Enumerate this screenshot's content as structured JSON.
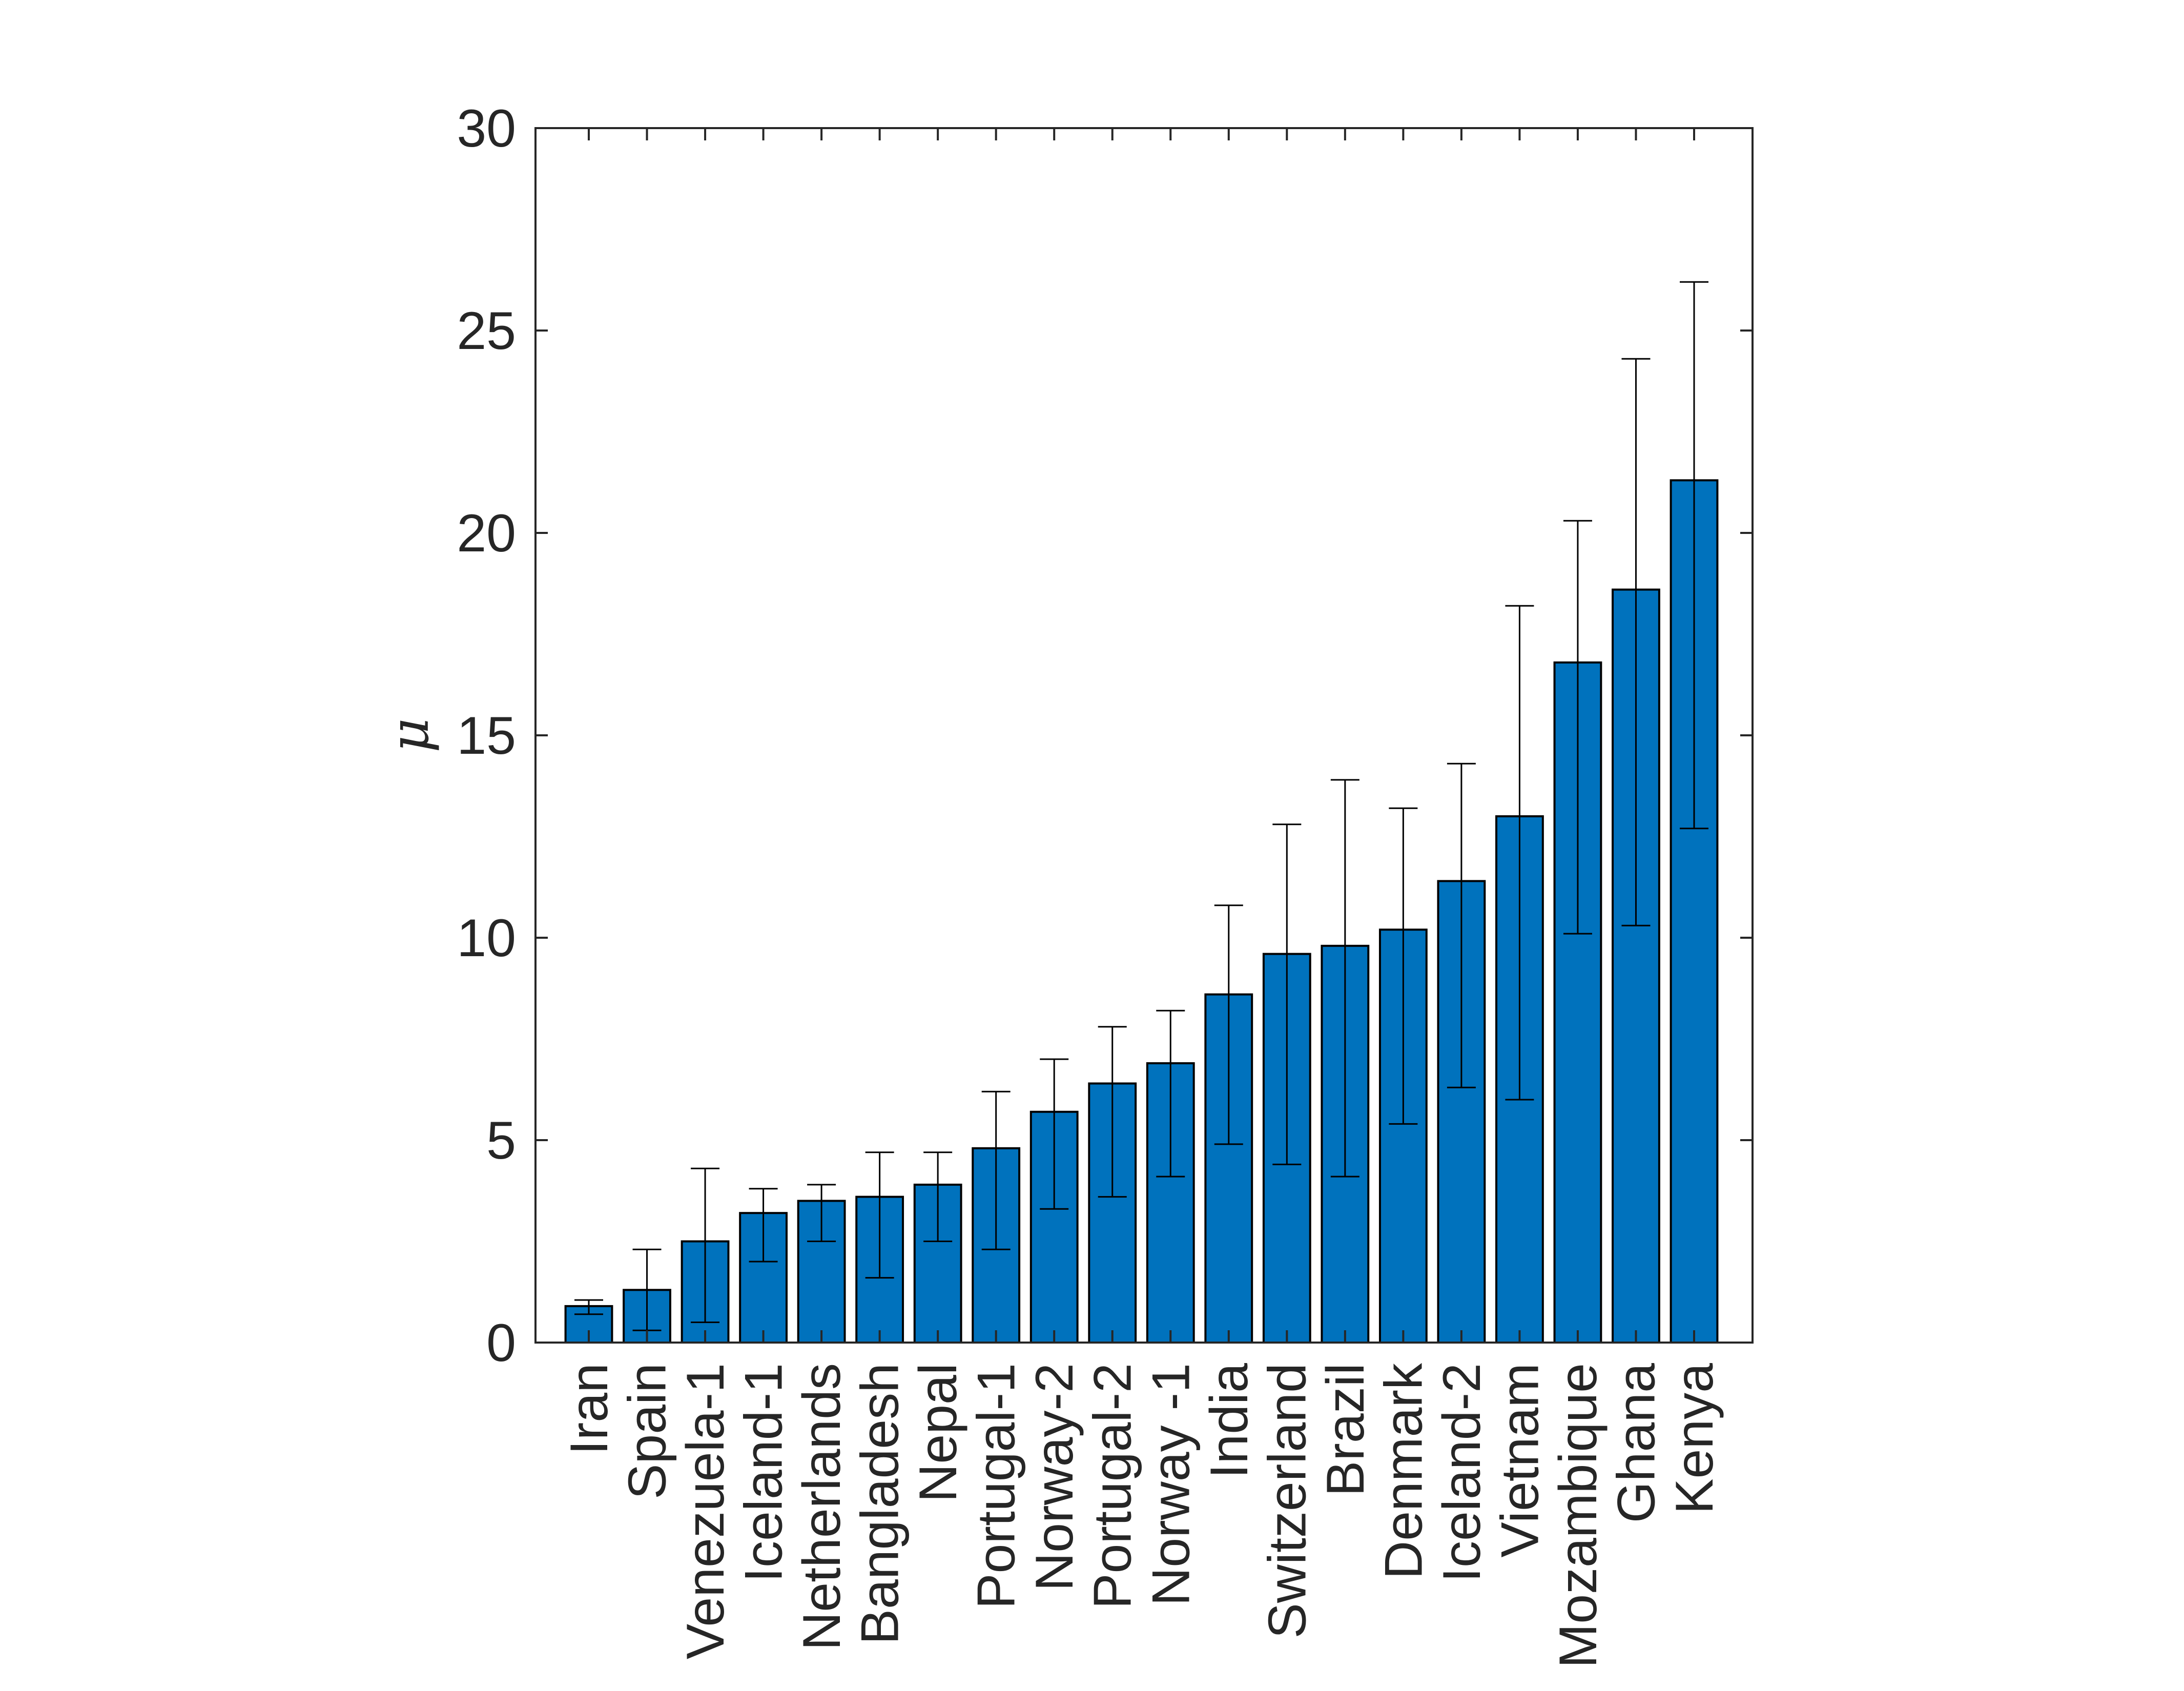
{
  "chart_data": {
    "type": "bar",
    "title": "",
    "xlabel": "",
    "ylabel": "μ",
    "ylim": [
      0,
      30
    ],
    "yticks": [
      0,
      5,
      10,
      15,
      20,
      25,
      30
    ],
    "grid": false,
    "bar_color": "#0072BD",
    "error_bar_color": "#000000",
    "categories": [
      "Iran",
      "Spain",
      "Venezuela-1",
      "Iceland-1",
      "Netherlands",
      "Bangladesh",
      "Nepal",
      "Portugal-1",
      "Norway-2",
      "Portugal-2",
      "Norway -1",
      "India",
      "Switzerland",
      "Brazil",
      "Denmark",
      "Iceland-2",
      "Vietnam",
      "Mozambique",
      "Ghana",
      "Kenya"
    ],
    "values": [
      0.9,
      1.3,
      2.5,
      3.2,
      3.5,
      3.6,
      3.9,
      4.8,
      5.7,
      6.4,
      6.9,
      8.6,
      9.6,
      9.8,
      10.2,
      11.4,
      13.0,
      16.8,
      18.6,
      21.3
    ],
    "error_low": [
      0.7,
      0.3,
      0.5,
      2.0,
      2.5,
      1.6,
      2.5,
      2.3,
      3.3,
      3.6,
      4.1,
      4.9,
      4.4,
      4.1,
      5.4,
      6.3,
      6.0,
      10.1,
      10.3,
      12.7
    ],
    "error_high": [
      1.05,
      2.3,
      4.3,
      3.8,
      3.9,
      4.7,
      4.7,
      6.2,
      7.0,
      7.8,
      8.2,
      10.8,
      12.8,
      13.9,
      13.2,
      14.3,
      18.2,
      20.3,
      24.3,
      26.2
    ]
  }
}
